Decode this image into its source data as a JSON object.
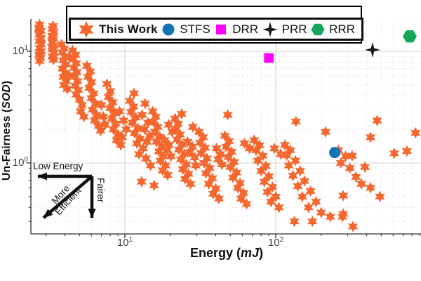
{
  "figure": {
    "background": "#ffffff",
    "axis_color": "#2b2b2b",
    "grid_major_color": "#d6d6d6",
    "grid_minor_color": "#dedede",
    "text_color": "#111111"
  },
  "legend": {
    "items": [
      {
        "label": "This Work",
        "marker": "star6",
        "color": "#f4672f",
        "bold": true
      },
      {
        "label": "STFS",
        "marker": "circle",
        "color": "#1273b5",
        "bold": false
      },
      {
        "label": "DRR",
        "marker": "square",
        "color": "#ff00ff",
        "bold": false
      },
      {
        "label": "PRR",
        "marker": "star4",
        "color": "#1a1a1a",
        "bold": false
      },
      {
        "label": "RRR",
        "marker": "hexagon",
        "color": "#13a85c",
        "bold": false
      }
    ]
  },
  "axes": {
    "x": {
      "scale": "log",
      "label": {
        "prefix": "Energy (",
        "italic": "mJ",
        "suffix": ")"
      },
      "ticks": [
        {
          "base": "10",
          "exp": "1",
          "value": 10
        },
        {
          "base": "10",
          "exp": "2",
          "value": 100
        }
      ]
    },
    "y": {
      "scale": "log",
      "label": {
        "prefix": "Un-Fairness (",
        "italic": "SOD",
        "suffix": ")"
      },
      "ticks": [
        {
          "base": "10",
          "exp": "1",
          "value": 10
        },
        {
          "base": "10",
          "exp": "0",
          "value": 1
        }
      ]
    }
  },
  "annotations": {
    "low_energy": "Low Energy",
    "more_efficient_line1": "More",
    "more_efficient_line2": "Efficient",
    "fairer": "Fairer"
  },
  "chart_data": {
    "type": "scatter",
    "xscale": "log",
    "yscale": "log",
    "xlabel": "Energy (mJ)",
    "ylabel": "Un-Fairness (SOD)",
    "xlim": [
      2.4,
      920
    ],
    "ylim": [
      0.23,
      18.7
    ],
    "x_tick_values": [
      10,
      100
    ],
    "y_tick_values": [
      1,
      10
    ],
    "grid": "log major solid + minor dotted",
    "legend_position": "top",
    "series": [
      {
        "name": "This Work",
        "marker": "star6",
        "color": "#f4672f",
        "points": [
          [
            2.7,
            16.3
          ],
          [
            2.78,
            15.2
          ],
          [
            2.7,
            14.1
          ],
          [
            2.76,
            13.2
          ],
          [
            2.7,
            12.3
          ],
          [
            2.78,
            11.5
          ],
          [
            2.72,
            10.7
          ],
          [
            2.78,
            10.0
          ],
          [
            2.7,
            9.3
          ],
          [
            2.76,
            8.7
          ],
          [
            2.72,
            8.2
          ],
          [
            2.7,
            15.8
          ],
          [
            2.77,
            12.9
          ],
          [
            2.73,
            9.8
          ],
          [
            2.72,
            17.4
          ],
          [
            3.3,
            15.9
          ],
          [
            3.38,
            14.8
          ],
          [
            3.3,
            13.8
          ],
          [
            3.36,
            12.9
          ],
          [
            3.3,
            12.0
          ],
          [
            3.38,
            11.2
          ],
          [
            3.32,
            10.4
          ],
          [
            3.38,
            9.7
          ],
          [
            3.3,
            9.0
          ],
          [
            3.36,
            8.4
          ],
          [
            3.32,
            13.4
          ],
          [
            3.3,
            10.9
          ],
          [
            3.37,
            8.9
          ],
          [
            3.34,
            16.8
          ],
          [
            3.8,
            11.5
          ],
          [
            3.95,
            10.6
          ],
          [
            3.85,
            9.8
          ],
          [
            4.0,
            9.0
          ],
          [
            3.9,
            8.3
          ],
          [
            4.05,
            7.6
          ],
          [
            3.85,
            7.0
          ],
          [
            4.0,
            6.4
          ],
          [
            3.9,
            5.9
          ],
          [
            4.1,
            5.4
          ],
          [
            3.95,
            5.0
          ],
          [
            4.15,
            4.6
          ],
          [
            4.3,
            8.8
          ],
          [
            4.25,
            6.1
          ],
          [
            4.5,
            10.2
          ],
          [
            4.7,
            9.3
          ],
          [
            4.55,
            8.5
          ],
          [
            4.75,
            7.8
          ],
          [
            4.6,
            7.1
          ],
          [
            4.8,
            6.5
          ],
          [
            4.65,
            5.9
          ],
          [
            4.85,
            5.4
          ],
          [
            4.7,
            4.9
          ],
          [
            4.9,
            4.5
          ],
          [
            4.75,
            4.1
          ],
          [
            5.0,
            3.7
          ],
          [
            5.2,
            3.3
          ],
          [
            5.1,
            2.9
          ],
          [
            5.35,
            2.6
          ],
          [
            5.6,
            7.4
          ],
          [
            5.9,
            6.6
          ],
          [
            5.7,
            5.9
          ],
          [
            6.0,
            5.3
          ],
          [
            5.8,
            4.7
          ],
          [
            6.2,
            4.2
          ],
          [
            6.0,
            3.8
          ],
          [
            6.4,
            3.4
          ],
          [
            6.1,
            3.0
          ],
          [
            6.5,
            2.7
          ],
          [
            6.3,
            2.4
          ],
          [
            6.7,
            2.15
          ],
          [
            6.9,
            1.95
          ],
          [
            7.2,
            2.6
          ],
          [
            7.4,
            2.2
          ],
          [
            7.0,
            3.3
          ],
          [
            7.6,
            5.1
          ],
          [
            8.0,
            4.4
          ],
          [
            7.8,
            3.9
          ],
          [
            8.3,
            3.5
          ],
          [
            8.0,
            3.1
          ],
          [
            8.5,
            2.8
          ],
          [
            8.2,
            2.5
          ],
          [
            8.7,
            2.25
          ],
          [
            8.4,
            2.0
          ],
          [
            9.0,
            1.8
          ],
          [
            8.8,
            1.6
          ],
          [
            9.4,
            1.45
          ],
          [
            9.2,
            2.9
          ],
          [
            9.8,
            2.4
          ],
          [
            10.2,
            2.0
          ],
          [
            9.6,
            1.7
          ],
          [
            10.8,
            3.6
          ],
          [
            11.4,
            3.2
          ],
          [
            11.0,
            2.85
          ],
          [
            11.8,
            2.55
          ],
          [
            11.2,
            2.3
          ],
          [
            12.2,
            2.05
          ],
          [
            11.6,
            1.85
          ],
          [
            12.6,
            1.65
          ],
          [
            12.0,
            1.5
          ],
          [
            13.2,
            1.35
          ],
          [
            12.4,
            1.2
          ],
          [
            13.8,
            1.1
          ],
          [
            13.0,
            2.7
          ],
          [
            14.2,
            2.3
          ],
          [
            13.5,
            2.0
          ],
          [
            14.6,
            1.75
          ],
          [
            14.0,
            1.55
          ],
          [
            14.8,
            0.95
          ],
          [
            11.5,
            4.2
          ],
          [
            13.6,
            3.4
          ],
          [
            15.3,
            2.9
          ],
          [
            16.0,
            2.6
          ],
          [
            15.5,
            2.35
          ],
          [
            16.5,
            2.1
          ],
          [
            15.8,
            1.9
          ],
          [
            17.0,
            1.72
          ],
          [
            16.2,
            1.55
          ],
          [
            17.5,
            1.4
          ],
          [
            16.8,
            1.27
          ],
          [
            18.0,
            1.15
          ],
          [
            17.2,
            1.05
          ],
          [
            18.6,
            0.95
          ],
          [
            17.8,
            0.86
          ],
          [
            19.2,
            0.78
          ],
          [
            18.3,
            1.6
          ],
          [
            19.6,
            1.45
          ],
          [
            19.0,
            1.3
          ],
          [
            20.2,
            1.15
          ],
          [
            19.5,
            2.2
          ],
          [
            20.6,
            1.9
          ],
          [
            12.9,
            0.68
          ],
          [
            15.6,
            0.63
          ],
          [
            21.5,
            2.5
          ],
          [
            22.5,
            2.25
          ],
          [
            21.8,
            2.0
          ],
          [
            23.2,
            1.8
          ],
          [
            22.2,
            1.62
          ],
          [
            24.0,
            1.46
          ],
          [
            22.8,
            1.32
          ],
          [
            24.8,
            1.2
          ],
          [
            23.5,
            1.08
          ],
          [
            25.6,
            0.97
          ],
          [
            24.2,
            0.88
          ],
          [
            26.4,
            0.8
          ],
          [
            25.0,
            0.72
          ],
          [
            27.2,
            0.65
          ],
          [
            26.0,
            1.55
          ],
          [
            28.0,
            1.4
          ],
          [
            27.0,
            1.25
          ],
          [
            29.0,
            1.12
          ],
          [
            28.2,
            2.1
          ],
          [
            29.5,
            0.95
          ],
          [
            23.8,
            2.75
          ],
          [
            31,
            1.9
          ],
          [
            33,
            1.7
          ],
          [
            31.5,
            1.52
          ],
          [
            34,
            1.37
          ],
          [
            32,
            1.23
          ],
          [
            35,
            1.1
          ],
          [
            33.5,
            1.0
          ],
          [
            36.5,
            0.9
          ],
          [
            34.5,
            0.81
          ],
          [
            38,
            0.73
          ],
          [
            36,
            0.65
          ],
          [
            40,
            0.59
          ],
          [
            38.5,
            0.53
          ],
          [
            42,
            0.48
          ],
          [
            40.5,
            1.35
          ],
          [
            43,
            1.2
          ],
          [
            41.5,
            1.08
          ],
          [
            44,
            0.97
          ],
          [
            48,
            2.7
          ],
          [
            46,
            1.75
          ],
          [
            49,
            1.57
          ],
          [
            47,
            1.4
          ],
          [
            51,
            1.26
          ],
          [
            48.5,
            1.13
          ],
          [
            53,
            1.02
          ],
          [
            50,
            0.92
          ],
          [
            55,
            0.82
          ],
          [
            52,
            0.74
          ],
          [
            58,
            0.66
          ],
          [
            56,
            0.6
          ],
          [
            61,
            0.54
          ],
          [
            59,
            0.48
          ],
          [
            64,
            0.43
          ],
          [
            62,
            1.5
          ],
          [
            67,
            1.35
          ],
          [
            72,
            1.6
          ],
          [
            78,
            1.44
          ],
          [
            74,
            1.3
          ],
          [
            82,
            1.16
          ],
          [
            76,
            1.05
          ],
          [
            86,
            0.94
          ],
          [
            80,
            0.85
          ],
          [
            90,
            0.76
          ],
          [
            84,
            0.68
          ],
          [
            95,
            0.61
          ],
          [
            88,
            0.55
          ],
          [
            100,
            0.5
          ],
          [
            93,
            0.45
          ],
          [
            105,
            0.4
          ],
          [
            98,
            1.35
          ],
          [
            108,
            1.2
          ],
          [
            115,
            1.45
          ],
          [
            125,
            1.3
          ],
          [
            118,
            1.17
          ],
          [
            135,
            1.05
          ],
          [
            122,
            0.95
          ],
          [
            145,
            0.85
          ],
          [
            130,
            0.77
          ],
          [
            155,
            0.69
          ],
          [
            140,
            0.62
          ],
          [
            170,
            0.56
          ],
          [
            150,
            0.5
          ],
          [
            185,
            0.45
          ],
          [
            165,
            0.4
          ],
          [
            200,
            0.36
          ],
          [
            175,
            0.3
          ],
          [
            230,
            0.33
          ],
          [
            136,
            2.35
          ],
          [
            214,
            1.9
          ],
          [
            260,
            1.3
          ],
          [
            290,
            1.15
          ],
          [
            270,
            1.0
          ],
          [
            310,
            0.9
          ],
          [
            280,
            0.35
          ],
          [
            325,
            0.27
          ],
          [
            340,
            0.75
          ],
          [
            370,
            0.65
          ],
          [
            425,
            1.7
          ],
          [
            470,
            2.4
          ],
          [
            321,
            1.16
          ],
          [
            390,
            0.92
          ],
          [
            610,
            1.22
          ],
          [
            740,
            1.28
          ],
          [
            845,
            1.86
          ],
          [
            425,
            0.6
          ],
          [
            490,
            0.5
          ],
          [
            280,
            0.51
          ],
          [
            133,
            0.3
          ],
          [
            277,
            0.33
          ]
        ]
      },
      {
        "name": "STFS",
        "marker": "circle",
        "color": "#1273b5",
        "points": [
          [
            246,
            1.24
          ]
        ]
      },
      {
        "name": "DRR",
        "marker": "square",
        "color": "#ff00ff",
        "points": [
          [
            90,
            8.7
          ]
        ]
      },
      {
        "name": "PRR",
        "marker": "star4",
        "color": "#1a1a1a",
        "points": [
          [
            438,
            10.3
          ]
        ]
      },
      {
        "name": "RRR",
        "marker": "hexagon",
        "color": "#13a85c",
        "points": [
          [
            773,
            13.6
          ]
        ]
      }
    ]
  }
}
